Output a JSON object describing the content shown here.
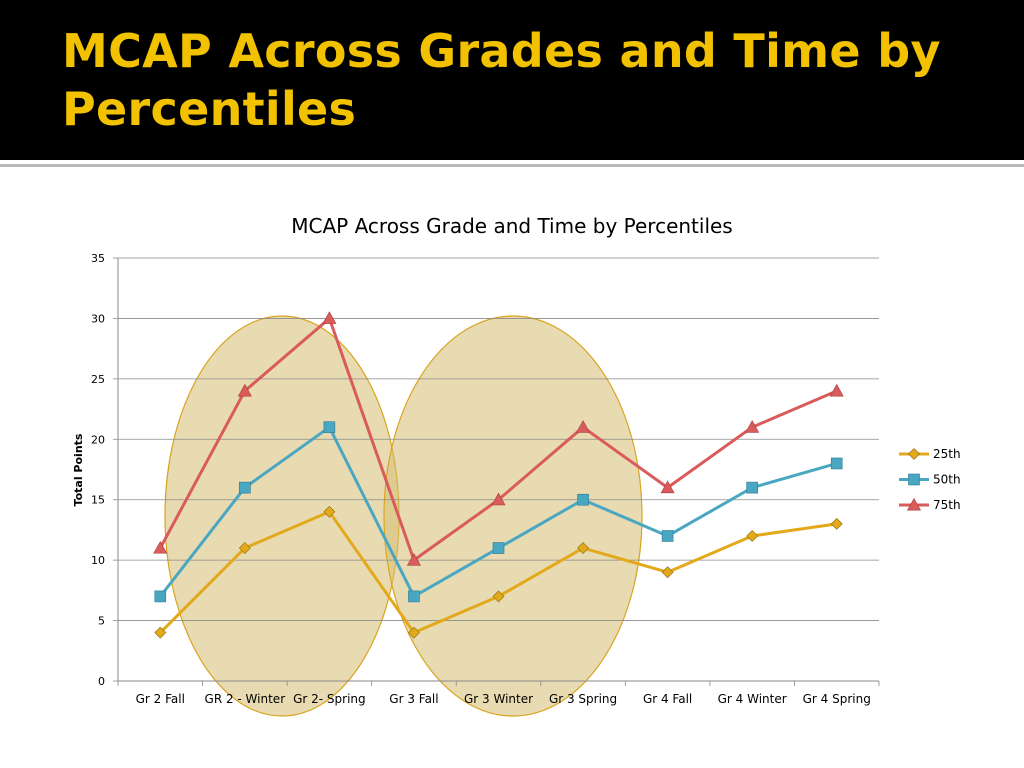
{
  "slide": {
    "title": "MCAP Across Grades and Time by Percentiles"
  },
  "chart_data": {
    "type": "line",
    "title": "MCAP Across Grade and Time by Percentiles",
    "xlabel": "",
    "ylabel": "Total Points",
    "ylim": [
      0,
      35
    ],
    "yticks": [
      0,
      5,
      10,
      15,
      20,
      25,
      30,
      35
    ],
    "grid": true,
    "legend_position": "right",
    "categories": [
      "Gr 2 Fall",
      "GR 2 - Winter",
      "Gr 2- Spring",
      "Gr 3 Fall",
      "Gr 3 Winter",
      "Gr 3 Spring",
      "Gr 4 Fall",
      "Gr 4 Winter",
      "Gr 4 Spring"
    ],
    "series": [
      {
        "name": "25th",
        "values": [
          4,
          11,
          14,
          4,
          7,
          11,
          9,
          12,
          13
        ],
        "color": "#e3a91b",
        "marker": "diamond"
      },
      {
        "name": "50th",
        "values": [
          7,
          16,
          21,
          7,
          11,
          15,
          12,
          16,
          18
        ],
        "color": "#4aa7c2",
        "marker": "square"
      },
      {
        "name": "75th",
        "values": [
          11,
          24,
          30,
          10,
          15,
          21,
          16,
          21,
          24
        ],
        "color": "#d95b5b",
        "marker": "triangle"
      }
    ],
    "highlight_color": "#d6bd73"
  }
}
